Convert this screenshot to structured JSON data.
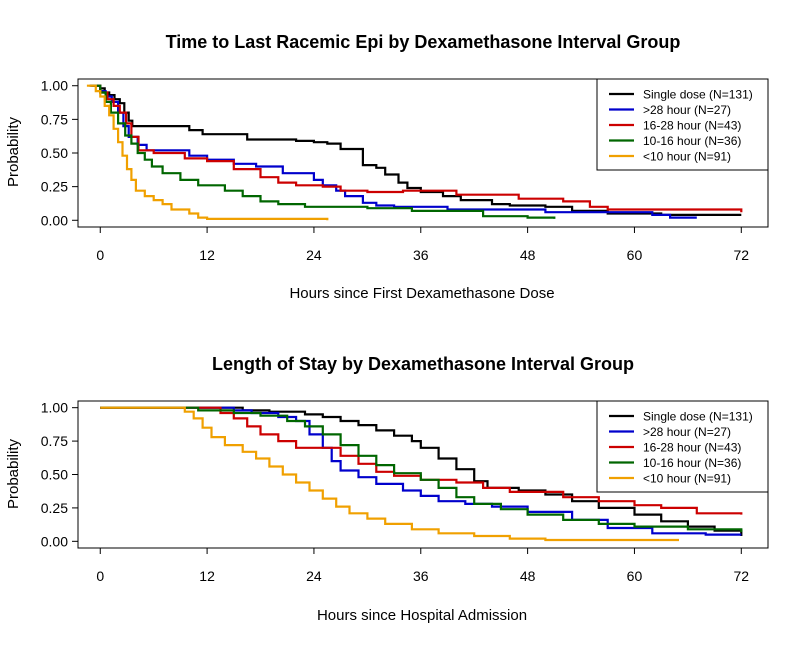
{
  "chart_data": [
    {
      "type": "line",
      "title": "Time to Last Racemic Epi by Dexamethasone Interval Group",
      "xlabel": "Hours since First Dexamethasone Dose",
      "ylabel": "Probability",
      "xlim": [
        -2.5,
        75
      ],
      "ylim": [
        -0.05,
        1.05
      ],
      "xticks": [
        0,
        12,
        24,
        36,
        48,
        60,
        72
      ],
      "xtick_labels": [
        "0",
        "12",
        "24",
        "36",
        "48",
        "60",
        "72"
      ],
      "yticks": [
        0,
        0.25,
        0.5,
        0.75,
        1
      ],
      "ytick_labels": [
        "0.00",
        "0.25",
        "0.50",
        "0.75",
        "1.00"
      ],
      "grid": false,
      "legend_position": "top-right",
      "series": [
        {
          "name": "Single dose (N=131)",
          "color": "#000000",
          "points": [
            [
              -1.2,
              1.0
            ],
            [
              0,
              0.98
            ],
            [
              0.5,
              0.95
            ],
            [
              1,
              0.93
            ],
            [
              1.6,
              0.9
            ],
            [
              2.2,
              0.87
            ],
            [
              2.7,
              0.8
            ],
            [
              3.2,
              0.74
            ],
            [
              3.6,
              0.7
            ],
            [
              10,
              0.67
            ],
            [
              11.5,
              0.64
            ],
            [
              16.5,
              0.6
            ],
            [
              22,
              0.59
            ],
            [
              24,
              0.58
            ],
            [
              25.5,
              0.57
            ],
            [
              27,
              0.53
            ],
            [
              29.5,
              0.41
            ],
            [
              31,
              0.39
            ],
            [
              32,
              0.34
            ],
            [
              33.5,
              0.28
            ],
            [
              34.5,
              0.24
            ],
            [
              36,
              0.21
            ],
            [
              38.5,
              0.18
            ],
            [
              40.5,
              0.15
            ],
            [
              44,
              0.12
            ],
            [
              46,
              0.11
            ],
            [
              50,
              0.1
            ],
            [
              53,
              0.07
            ],
            [
              57,
              0.05
            ],
            [
              63,
              0.04
            ],
            [
              72,
              0.04
            ]
          ]
        },
        {
          "name": ">28 hour (N=27)",
          "color": "#0000cc",
          "points": [
            [
              -0.8,
              1.0
            ],
            [
              0,
              0.96
            ],
            [
              0.6,
              0.92
            ],
            [
              1.3,
              0.88
            ],
            [
              2.0,
              0.8
            ],
            [
              2.6,
              0.7
            ],
            [
              3.2,
              0.62
            ],
            [
              4.2,
              0.56
            ],
            [
              5.2,
              0.52
            ],
            [
              10,
              0.48
            ],
            [
              12,
              0.45
            ],
            [
              15,
              0.42
            ],
            [
              17.5,
              0.4
            ],
            [
              20.5,
              0.35
            ],
            [
              24,
              0.3
            ],
            [
              25,
              0.26
            ],
            [
              26.5,
              0.22
            ],
            [
              27.5,
              0.18
            ],
            [
              29.5,
              0.13
            ],
            [
              31,
              0.11
            ],
            [
              33,
              0.1
            ],
            [
              39,
              0.08
            ],
            [
              50,
              0.06
            ],
            [
              62,
              0.04
            ],
            [
              64,
              0.02
            ],
            [
              67,
              0.02
            ]
          ]
        },
        {
          "name": "16-28 hour (N=43)",
          "color": "#cc0000",
          "points": [
            [
              -1,
              1.0
            ],
            [
              0,
              0.95
            ],
            [
              0.8,
              0.9
            ],
            [
              1.5,
              0.85
            ],
            [
              2.2,
              0.8
            ],
            [
              2.9,
              0.72
            ],
            [
              3.5,
              0.62
            ],
            [
              4.3,
              0.52
            ],
            [
              6,
              0.5
            ],
            [
              9.5,
              0.46
            ],
            [
              12,
              0.44
            ],
            [
              15,
              0.38
            ],
            [
              18,
              0.32
            ],
            [
              20,
              0.28
            ],
            [
              22,
              0.26
            ],
            [
              25,
              0.25
            ],
            [
              27,
              0.22
            ],
            [
              30,
              0.21
            ],
            [
              34,
              0.22
            ],
            [
              40,
              0.19
            ],
            [
              47,
              0.16
            ],
            [
              52,
              0.14
            ],
            [
              55,
              0.1
            ],
            [
              57,
              0.08
            ],
            [
              62,
              0.08
            ],
            [
              72,
              0.06
            ]
          ]
        },
        {
          "name": "10-16 hour (N=36)",
          "color": "#006600",
          "points": [
            [
              -1,
              1.0
            ],
            [
              0,
              0.95
            ],
            [
              0.6,
              0.88
            ],
            [
              1.2,
              0.8
            ],
            [
              2.0,
              0.72
            ],
            [
              2.8,
              0.63
            ],
            [
              3.5,
              0.57
            ],
            [
              4.2,
              0.5
            ],
            [
              5.0,
              0.45
            ],
            [
              5.8,
              0.4
            ],
            [
              7,
              0.35
            ],
            [
              9,
              0.3
            ],
            [
              11,
              0.26
            ],
            [
              14,
              0.22
            ],
            [
              16,
              0.18
            ],
            [
              18,
              0.14
            ],
            [
              20,
              0.12
            ],
            [
              23,
              0.1
            ],
            [
              30,
              0.09
            ],
            [
              35,
              0.07
            ],
            [
              43,
              0.03
            ],
            [
              48,
              0.02
            ],
            [
              51,
              0.01
            ]
          ]
        },
        {
          "name": "<10 hour (N=91)",
          "color": "#f0a000",
          "points": [
            [
              -1.5,
              1.0
            ],
            [
              -0.5,
              0.96
            ],
            [
              0,
              0.92
            ],
            [
              0.5,
              0.85
            ],
            [
              1.0,
              0.78
            ],
            [
              1.5,
              0.68
            ],
            [
              2.0,
              0.58
            ],
            [
              2.5,
              0.48
            ],
            [
              3.0,
              0.38
            ],
            [
              3.5,
              0.3
            ],
            [
              4.0,
              0.22
            ],
            [
              5,
              0.18
            ],
            [
              6,
              0.15
            ],
            [
              7,
              0.12
            ],
            [
              8,
              0.08
            ],
            [
              10,
              0.05
            ],
            [
              11,
              0.02
            ],
            [
              12,
              0.01
            ],
            [
              25.5,
              0.0
            ]
          ]
        }
      ]
    },
    {
      "type": "line",
      "title": "Length of Stay by Dexamethasone Interval Group",
      "xlabel": "Hours since Hospital Admission",
      "ylabel": "Probability",
      "xlim": [
        -2.5,
        75
      ],
      "ylim": [
        -0.05,
        1.05
      ],
      "xticks": [
        0,
        12,
        24,
        36,
        48,
        60,
        72
      ],
      "xtick_labels": [
        "0",
        "12",
        "24",
        "36",
        "48",
        "60",
        "72"
      ],
      "yticks": [
        0,
        0.25,
        0.5,
        0.75,
        1
      ],
      "ytick_labels": [
        "0.00",
        "0.25",
        "0.50",
        "0.75",
        "1.00"
      ],
      "grid": false,
      "legend_position": "top-right",
      "series": [
        {
          "name": "Single dose (N=131)",
          "color": "#000000",
          "points": [
            [
              0,
              1.0
            ],
            [
              14,
              1.0
            ],
            [
              16,
              0.98
            ],
            [
              19,
              0.97
            ],
            [
              23,
              0.95
            ],
            [
              25,
              0.93
            ],
            [
              27,
              0.9
            ],
            [
              29,
              0.87
            ],
            [
              31,
              0.83
            ],
            [
              33,
              0.79
            ],
            [
              35,
              0.75
            ],
            [
              36,
              0.7
            ],
            [
              38,
              0.62
            ],
            [
              40,
              0.54
            ],
            [
              42,
              0.45
            ],
            [
              43.5,
              0.4
            ],
            [
              47,
              0.38
            ],
            [
              50,
              0.35
            ],
            [
              53,
              0.3
            ],
            [
              56,
              0.25
            ],
            [
              60,
              0.2
            ],
            [
              63,
              0.15
            ],
            [
              66,
              0.11
            ],
            [
              69,
              0.08
            ],
            [
              72,
              0.04
            ]
          ]
        },
        {
          "name": ">28 hour (N=27)",
          "color": "#0000cc",
          "points": [
            [
              0,
              1.0
            ],
            [
              12,
              1.0
            ],
            [
              15,
              0.98
            ],
            [
              17,
              0.96
            ],
            [
              20,
              0.93
            ],
            [
              22,
              0.9
            ],
            [
              23.5,
              0.8
            ],
            [
              25,
              0.7
            ],
            [
              26,
              0.6
            ],
            [
              27,
              0.53
            ],
            [
              29,
              0.48
            ],
            [
              31,
              0.43
            ],
            [
              34,
              0.38
            ],
            [
              36,
              0.34
            ],
            [
              38,
              0.3
            ],
            [
              41,
              0.28
            ],
            [
              44,
              0.26
            ],
            [
              48,
              0.22
            ],
            [
              53,
              0.16
            ],
            [
              57,
              0.1
            ],
            [
              62,
              0.06
            ],
            [
              68,
              0.05
            ],
            [
              72,
              0.05
            ]
          ]
        },
        {
          "name": "16-28 hour (N=43)",
          "color": "#cc0000",
          "points": [
            [
              0,
              1.0
            ],
            [
              12,
              1.0
            ],
            [
              13.5,
              0.96
            ],
            [
              15,
              0.92
            ],
            [
              16.5,
              0.86
            ],
            [
              18,
              0.8
            ],
            [
              20,
              0.75
            ],
            [
              22,
              0.7
            ],
            [
              26,
              0.7
            ],
            [
              27,
              0.64
            ],
            [
              29,
              0.58
            ],
            [
              31,
              0.52
            ],
            [
              33,
              0.49
            ],
            [
              36,
              0.46
            ],
            [
              40,
              0.44
            ],
            [
              43,
              0.4
            ],
            [
              46,
              0.37
            ],
            [
              52,
              0.33
            ],
            [
              56,
              0.3
            ],
            [
              60,
              0.27
            ],
            [
              63,
              0.25
            ],
            [
              67,
              0.21
            ],
            [
              72,
              0.2
            ]
          ]
        },
        {
          "name": "10-16 hour (N=36)",
          "color": "#006600",
          "points": [
            [
              0,
              1.0
            ],
            [
              8,
              1.0
            ],
            [
              11,
              0.98
            ],
            [
              15,
              0.96
            ],
            [
              18,
              0.94
            ],
            [
              21,
              0.9
            ],
            [
              23,
              0.86
            ],
            [
              25,
              0.8
            ],
            [
              27,
              0.72
            ],
            [
              29,
              0.64
            ],
            [
              31,
              0.57
            ],
            [
              33,
              0.51
            ],
            [
              36,
              0.46
            ],
            [
              38,
              0.4
            ],
            [
              40,
              0.33
            ],
            [
              42,
              0.28
            ],
            [
              45,
              0.24
            ],
            [
              48,
              0.2
            ],
            [
              52,
              0.16
            ],
            [
              56,
              0.13
            ],
            [
              60,
              0.11
            ],
            [
              66,
              0.09
            ],
            [
              72,
              0.07
            ]
          ]
        },
        {
          "name": "<10 hour (N=91)",
          "color": "#f0a000",
          "points": [
            [
              0,
              1.0
            ],
            [
              8,
              1.0
            ],
            [
              9.5,
              0.97
            ],
            [
              10.5,
              0.92
            ],
            [
              11.5,
              0.85
            ],
            [
              12.5,
              0.78
            ],
            [
              14,
              0.72
            ],
            [
              16,
              0.67
            ],
            [
              17.5,
              0.62
            ],
            [
              19,
              0.56
            ],
            [
              20.5,
              0.5
            ],
            [
              22,
              0.44
            ],
            [
              23.5,
              0.38
            ],
            [
              25,
              0.32
            ],
            [
              26.5,
              0.26
            ],
            [
              28,
              0.21
            ],
            [
              30,
              0.17
            ],
            [
              32,
              0.13
            ],
            [
              35,
              0.09
            ],
            [
              38,
              0.06
            ],
            [
              42,
              0.04
            ],
            [
              46,
              0.02
            ],
            [
              50,
              0.01
            ],
            [
              65,
              0.01
            ]
          ]
        }
      ]
    }
  ]
}
